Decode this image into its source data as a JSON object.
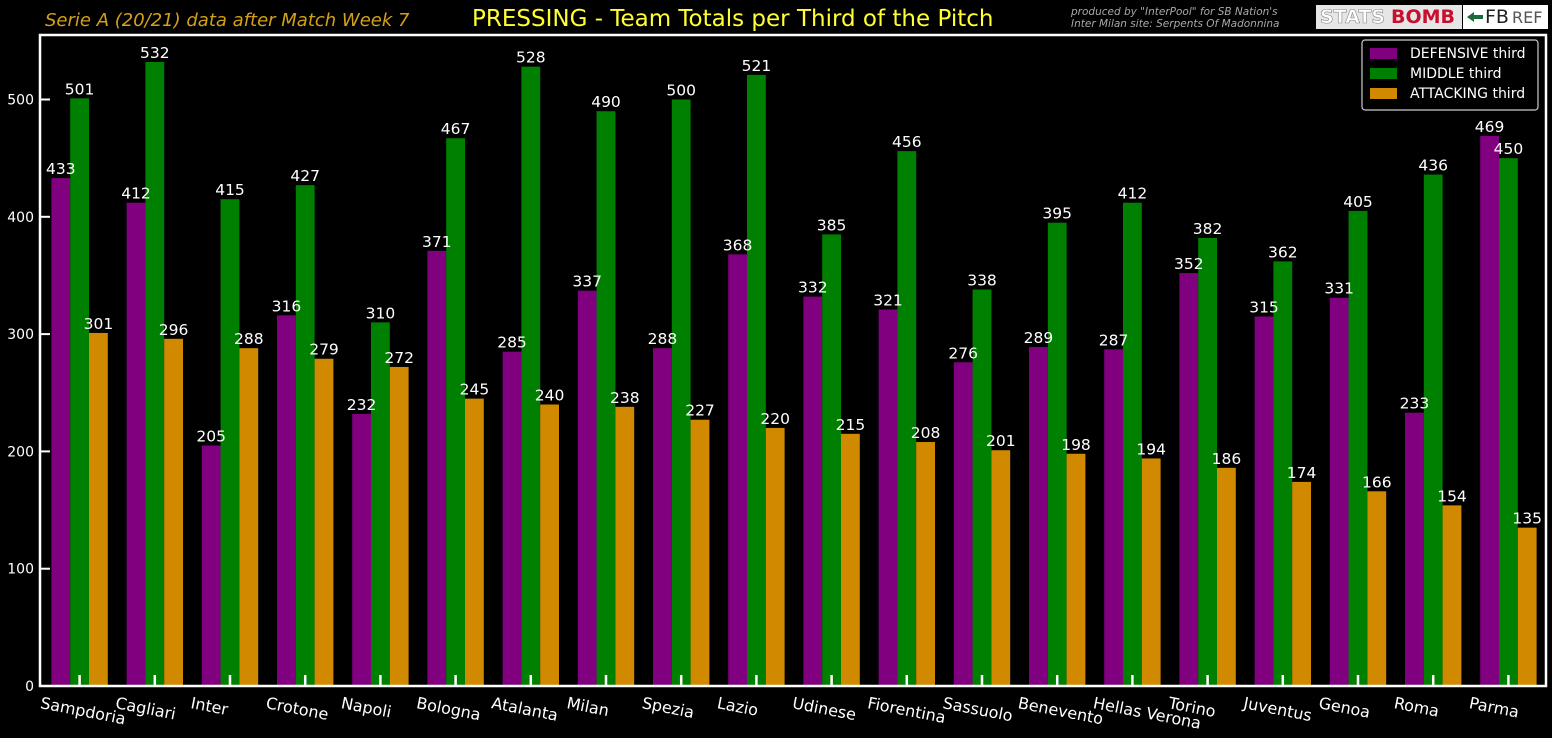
{
  "header": {
    "subtitle_left": "Serie A  (20/21)  data after  Match Week 7",
    "credit_line1": "produced by \"InterPool\" for SB Nation's",
    "credit_line2": "Inter Milan site: Serpents Of Madonnina",
    "logo_statsbomb_a": "STATS",
    "logo_statsbomb_b": "BOMB",
    "logo_fbref_a": "FB",
    "logo_fbref_b": "REF"
  },
  "colors": {
    "background": "#000000",
    "defensive": "#800080",
    "middle": "#008000",
    "attacking": "#d18a00",
    "title": "#ffff33",
    "subtitle": "#d4a017",
    "text": "#ffffff"
  },
  "chart_data": {
    "type": "bar",
    "title": "PRESSING - Team Totals per Third of the Pitch",
    "xlabel": "",
    "ylabel": "",
    "ylim": [
      0,
      555
    ],
    "yticks": [
      0,
      100,
      200,
      300,
      400,
      500
    ],
    "grid": false,
    "legend_position": "top-right",
    "categories": [
      "Sampdoria",
      "Cagliari",
      "Inter",
      "Crotone",
      "Napoli",
      "Bologna",
      "Atalanta",
      "Milan",
      "Spezia",
      "Lazio",
      "Udinese",
      "Fiorentina",
      "Sassuolo",
      "Benevento",
      "Hellas Verona",
      "Torino",
      "Juventus",
      "Genoa",
      "Roma",
      "Parma"
    ],
    "series": [
      {
        "name": "DEFENSIVE third",
        "color": "#800080",
        "values": [
          433,
          412,
          205,
          316,
          232,
          371,
          285,
          337,
          288,
          368,
          332,
          321,
          276,
          289,
          287,
          352,
          315,
          331,
          233,
          469
        ]
      },
      {
        "name": "MIDDLE third",
        "color": "#008000",
        "values": [
          501,
          532,
          415,
          427,
          310,
          467,
          528,
          490,
          500,
          521,
          385,
          456,
          338,
          395,
          412,
          382,
          362,
          405,
          436,
          450
        ]
      },
      {
        "name": "ATTACKING third",
        "color": "#d18a00",
        "values": [
          301,
          296,
          288,
          279,
          272,
          245,
          240,
          238,
          227,
          220,
          215,
          208,
          201,
          198,
          194,
          186,
          174,
          166,
          154,
          135
        ]
      }
    ]
  }
}
